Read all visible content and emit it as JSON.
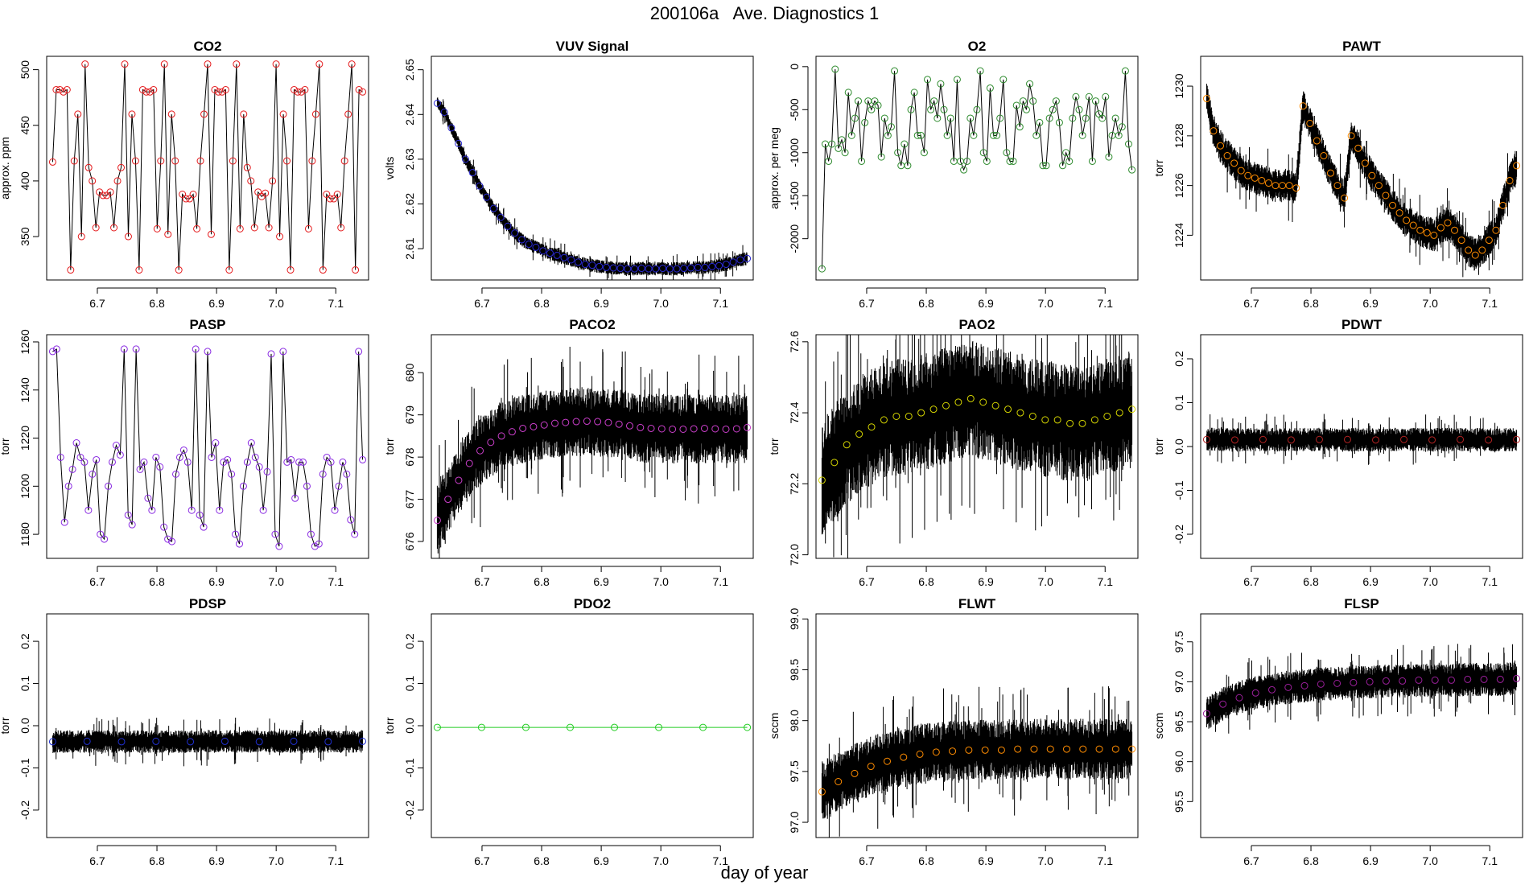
{
  "page": {
    "title": "200106a   Ave. Diagnostics 1",
    "xlabel": "day of year"
  },
  "chart_data": [
    {
      "id": "co2",
      "type": "line",
      "title": "CO2",
      "ylabel": "approx. ppm",
      "xlim": [
        6.615,
        7.155
      ],
      "ylim": [
        311,
        512
      ],
      "xticks": [
        6.7,
        6.8,
        6.9,
        7.0,
        7.1
      ],
      "yticks": [
        350,
        400,
        450,
        500
      ],
      "x_start": 6.625,
      "x_end": 7.145,
      "line_color": "#000000",
      "point_color": "#e41a1c",
      "noise": 0,
      "values": [
        417,
        482,
        482,
        480,
        482,
        320,
        418,
        460,
        350,
        505,
        412,
        400,
        358,
        390,
        387,
        387,
        390,
        358,
        400,
        412,
        505,
        350,
        460,
        418,
        320,
        482,
        480,
        480,
        482,
        357,
        418,
        505,
        352,
        460,
        418,
        320,
        388,
        384,
        384,
        388,
        357,
        418,
        460,
        505,
        352,
        482,
        480,
        480,
        482,
        320,
        418,
        505,
        357,
        460,
        412,
        400,
        358,
        390,
        386,
        389,
        358,
        400,
        505,
        350,
        460,
        418,
        320,
        482,
        480,
        480,
        482,
        357,
        418,
        460,
        505,
        320,
        388,
        384,
        384,
        388,
        358,
        418,
        460,
        505,
        320,
        482,
        480
      ]
    },
    {
      "id": "vuv",
      "type": "line",
      "title": "VUV Signal",
      "ylabel": "volts",
      "xlim": [
        6.615,
        7.155
      ],
      "ylim": [
        2.603,
        2.653
      ],
      "xticks": [
        6.7,
        6.8,
        6.9,
        7.0,
        7.1
      ],
      "yticks": [
        2.61,
        2.62,
        2.63,
        2.64,
        2.65
      ],
      "x_start": 6.625,
      "x_end": 7.145,
      "line_color": "#000000",
      "point_color": "#2b2bd6",
      "noise": 0.001,
      "values": [
        2.6425,
        2.6405,
        2.637,
        2.6335,
        2.63,
        2.627,
        2.624,
        2.6215,
        2.619,
        2.617,
        2.615,
        2.6135,
        2.612,
        2.611,
        2.6103,
        2.6095,
        2.609,
        2.6085,
        2.608,
        2.6075,
        2.607,
        2.6065,
        2.6063,
        2.606,
        2.6058,
        2.6057,
        2.6056,
        2.6055,
        2.6055,
        2.6056,
        2.6055,
        2.6055,
        2.6056,
        2.6055,
        2.6055,
        2.6056,
        2.6057,
        2.6058,
        2.6058,
        2.606,
        2.6062,
        2.6065,
        2.607,
        2.6075,
        2.6078
      ]
    },
    {
      "id": "o2",
      "type": "line",
      "title": "O2",
      "ylabel": "approx. per meg",
      "xlim": [
        6.615,
        7.155
      ],
      "ylim": [
        -2480,
        120
      ],
      "xticks": [
        6.7,
        6.8,
        6.9,
        7.0,
        7.1
      ],
      "yticks": [
        0,
        -500,
        -1000,
        -1500,
        -2000
      ],
      "x_start": 6.625,
      "x_end": 7.145,
      "line_color": "#000000",
      "point_color": "#2e8b2e",
      "noise": 0,
      "values": [
        -2350,
        -900,
        -1100,
        -900,
        -30,
        -950,
        -850,
        -1000,
        -300,
        -800,
        -600,
        -400,
        -1100,
        -650,
        -400,
        -500,
        -400,
        -450,
        -1050,
        -600,
        -800,
        -700,
        -50,
        -1000,
        -1150,
        -900,
        -1150,
        -500,
        -300,
        -800,
        -800,
        -1000,
        -150,
        -500,
        -400,
        -600,
        -200,
        -500,
        -800,
        -600,
        -1100,
        -150,
        -1100,
        -1200,
        -1100,
        -600,
        -800,
        -500,
        -50,
        -1000,
        -1100,
        -250,
        -800,
        -800,
        -600,
        -150,
        -1000,
        -1100,
        -1100,
        -450,
        -700,
        -400,
        -500,
        -200,
        -400,
        -800,
        -650,
        -1150,
        -1150,
        -600,
        -500,
        -400,
        -650,
        -1150,
        -1000,
        -1100,
        -600,
        -350,
        -500,
        -800,
        -600,
        -350,
        -1100,
        -400,
        -550,
        -600,
        -350,
        -1050,
        -800,
        -600,
        -800,
        -700,
        -50,
        -900,
        -1200
      ]
    },
    {
      "id": "pawt",
      "type": "line",
      "title": "PAWT",
      "ylabel": "torr",
      "xlim": [
        6.615,
        7.155
      ],
      "ylim": [
        1222.2,
        1231.2
      ],
      "xticks": [
        6.7,
        6.8,
        6.9,
        7.0,
        7.1
      ],
      "yticks": [
        1224,
        1226,
        1228,
        1230
      ],
      "x_start": 6.625,
      "x_end": 7.145,
      "line_color": "#000000",
      "point_color": "#ff8c00",
      "noise": 0.45,
      "values": [
        1229.5,
        1228.2,
        1227.6,
        1227.2,
        1226.9,
        1226.6,
        1226.4,
        1226.3,
        1226.2,
        1226.1,
        1226.0,
        1226.0,
        1226.0,
        1225.9,
        1229.2,
        1228.5,
        1227.8,
        1227.2,
        1226.5,
        1226.0,
        1225.5,
        1228.0,
        1227.5,
        1226.9,
        1226.4,
        1226.0,
        1225.6,
        1225.2,
        1224.9,
        1224.6,
        1224.4,
        1224.2,
        1224.1,
        1224.0,
        1224.3,
        1224.5,
        1224.2,
        1223.8,
        1223.4,
        1223.2,
        1223.4,
        1223.8,
        1224.2,
        1225.2,
        1226.2,
        1226.8
      ]
    },
    {
      "id": "pasp",
      "type": "line",
      "title": "PASP",
      "ylabel": "torr",
      "xlim": [
        6.615,
        7.155
      ],
      "ylim": [
        1170,
        1263
      ],
      "xticks": [
        6.7,
        6.8,
        6.9,
        7.0,
        7.1
      ],
      "yticks": [
        1180,
        1200,
        1220,
        1240,
        1260
      ],
      "x_start": 6.625,
      "x_end": 7.145,
      "line_color": "#000000",
      "point_color": "#8a2be2",
      "noise": 0,
      "values": [
        1256,
        1257,
        1212,
        1185,
        1200,
        1207,
        1218,
        1212,
        1210,
        1190,
        1205,
        1211,
        1180,
        1178,
        1200,
        1210,
        1217,
        1213,
        1257,
        1188,
        1184,
        1257,
        1207,
        1210,
        1195,
        1190,
        1212,
        1208,
        1183,
        1178,
        1177,
        1205,
        1212,
        1215,
        1210,
        1190,
        1257,
        1188,
        1183,
        1256,
        1212,
        1218,
        1190,
        1210,
        1211,
        1205,
        1180,
        1176,
        1200,
        1210,
        1218,
        1212,
        1208,
        1190,
        1206,
        1255,
        1180,
        1175,
        1256,
        1210,
        1211,
        1195,
        1210,
        1210,
        1200,
        1180,
        1175,
        1176,
        1205,
        1212,
        1210,
        1190,
        1200,
        1210,
        1205,
        1186,
        1180,
        1256,
        1211
      ]
    },
    {
      "id": "paco2",
      "type": "line",
      "title": "PACO2",
      "ylabel": "torr",
      "xlim": [
        6.615,
        7.155
      ],
      "ylim": [
        675.6,
        680.9
      ],
      "xticks": [
        6.7,
        6.8,
        6.9,
        7.0,
        7.1
      ],
      "yticks": [
        676,
        677,
        678,
        679,
        680
      ],
      "x_start": 6.625,
      "x_end": 7.145,
      "line_color": "#000000",
      "point_color": "#cc3fcc",
      "noise": 0.55,
      "values": [
        676.5,
        677.0,
        677.45,
        677.85,
        678.15,
        678.35,
        678.5,
        678.6,
        678.68,
        678.72,
        678.76,
        678.8,
        678.82,
        678.84,
        678.85,
        678.84,
        678.82,
        678.78,
        678.74,
        678.7,
        678.68,
        678.67,
        678.66,
        678.66,
        678.67,
        678.68,
        678.67,
        678.66,
        678.67,
        678.7
      ]
    },
    {
      "id": "pao2",
      "type": "line",
      "title": "PAO2",
      "ylabel": "torr",
      "xlim": [
        6.615,
        7.155
      ],
      "ylim": [
        71.99,
        72.62
      ],
      "xticks": [
        6.7,
        6.8,
        6.9,
        7.0,
        7.1
      ],
      "yticks": [
        72.0,
        72.2,
        72.4,
        72.6
      ],
      "x_start": 6.625,
      "x_end": 7.145,
      "line_color": "#000000",
      "point_color": "#d4d400",
      "noise": 0.11,
      "values": [
        72.21,
        72.26,
        72.31,
        72.34,
        72.36,
        72.38,
        72.39,
        72.39,
        72.4,
        72.41,
        72.42,
        72.43,
        72.44,
        72.43,
        72.42,
        72.41,
        72.4,
        72.39,
        72.38,
        72.38,
        72.37,
        72.37,
        72.38,
        72.39,
        72.4,
        72.41
      ]
    },
    {
      "id": "pdwt",
      "type": "line",
      "title": "PDWT",
      "ylabel": "torr",
      "xlim": [
        6.615,
        7.155
      ],
      "ylim": [
        -0.255,
        0.255
      ],
      "xticks": [
        6.7,
        6.8,
        6.9,
        7.0,
        7.1
      ],
      "yticks": [
        -0.2,
        -0.1,
        0.0,
        0.1,
        0.2
      ],
      "x_start": 6.625,
      "x_end": 7.145,
      "line_color": "#000000",
      "point_color": "#b22222",
      "noise": 0.018,
      "values": [
        0.016,
        0.015,
        0.016,
        0.015,
        0.016,
        0.016,
        0.015,
        0.016,
        0.015,
        0.016,
        0.015,
        0.016
      ]
    },
    {
      "id": "pdsp",
      "type": "line",
      "title": "PDSP",
      "ylabel": "torr",
      "xlim": [
        6.615,
        7.155
      ],
      "ylim": [
        -0.265,
        0.265
      ],
      "xticks": [
        6.7,
        6.8,
        6.9,
        7.0,
        7.1
      ],
      "yticks": [
        -0.2,
        -0.1,
        0.0,
        0.1,
        0.2
      ],
      "x_start": 6.625,
      "x_end": 7.145,
      "line_color": "#000000",
      "point_color": "#1f2fd0",
      "noise": 0.018,
      "values": [
        -0.038,
        -0.037,
        -0.038,
        -0.037,
        -0.038,
        -0.037,
        -0.038,
        -0.037,
        -0.038,
        -0.037
      ]
    },
    {
      "id": "pdo2",
      "type": "line",
      "title": "PDO2",
      "ylabel": "torr",
      "xlim": [
        6.615,
        7.155
      ],
      "ylim": [
        -0.265,
        0.265
      ],
      "xticks": [
        6.7,
        6.8,
        6.9,
        7.0,
        7.1
      ],
      "yticks": [
        -0.2,
        -0.1,
        0.0,
        0.1,
        0.2
      ],
      "x_start": 6.625,
      "x_end": 7.145,
      "line_color": "#22cc22",
      "point_color": "#22cc22",
      "noise": 0,
      "values": [
        -0.004,
        -0.004,
        -0.004,
        -0.004,
        -0.004,
        -0.004,
        -0.004,
        -0.004
      ]
    },
    {
      "id": "flwt",
      "type": "line",
      "title": "FLWT",
      "ylabel": "sccm",
      "xlim": [
        6.615,
        7.155
      ],
      "ylim": [
        96.85,
        99.05
      ],
      "xticks": [
        6.7,
        6.8,
        6.9,
        7.0,
        7.1
      ],
      "yticks": [
        97.0,
        97.5,
        98.0,
        98.5,
        99.0
      ],
      "x_start": 6.625,
      "x_end": 7.145,
      "line_color": "#000000",
      "point_color": "#ff8c00",
      "noise": 0.2,
      "values": [
        97.3,
        97.4,
        97.48,
        97.55,
        97.6,
        97.64,
        97.67,
        97.69,
        97.7,
        97.71,
        97.71,
        97.71,
        97.72,
        97.72,
        97.72,
        97.72,
        97.72,
        97.72,
        97.72,
        97.72
      ]
    },
    {
      "id": "flsp",
      "type": "line",
      "title": "FLSP",
      "ylabel": "sccm",
      "xlim": [
        6.615,
        7.155
      ],
      "ylim": [
        95.05,
        97.85
      ],
      "xticks": [
        6.7,
        6.8,
        6.9,
        7.0,
        7.1
      ],
      "yticks": [
        95.5,
        96.0,
        96.5,
        97.0,
        97.5
      ],
      "x_start": 6.625,
      "x_end": 7.145,
      "line_color": "#000000",
      "point_color": "#9b1f9b",
      "noise": 0.14,
      "values": [
        96.6,
        96.72,
        96.8,
        96.86,
        96.9,
        96.93,
        96.95,
        96.97,
        96.98,
        96.99,
        97.0,
        97.01,
        97.01,
        97.02,
        97.02,
        97.02,
        97.03,
        97.03,
        97.03,
        97.04
      ]
    }
  ]
}
